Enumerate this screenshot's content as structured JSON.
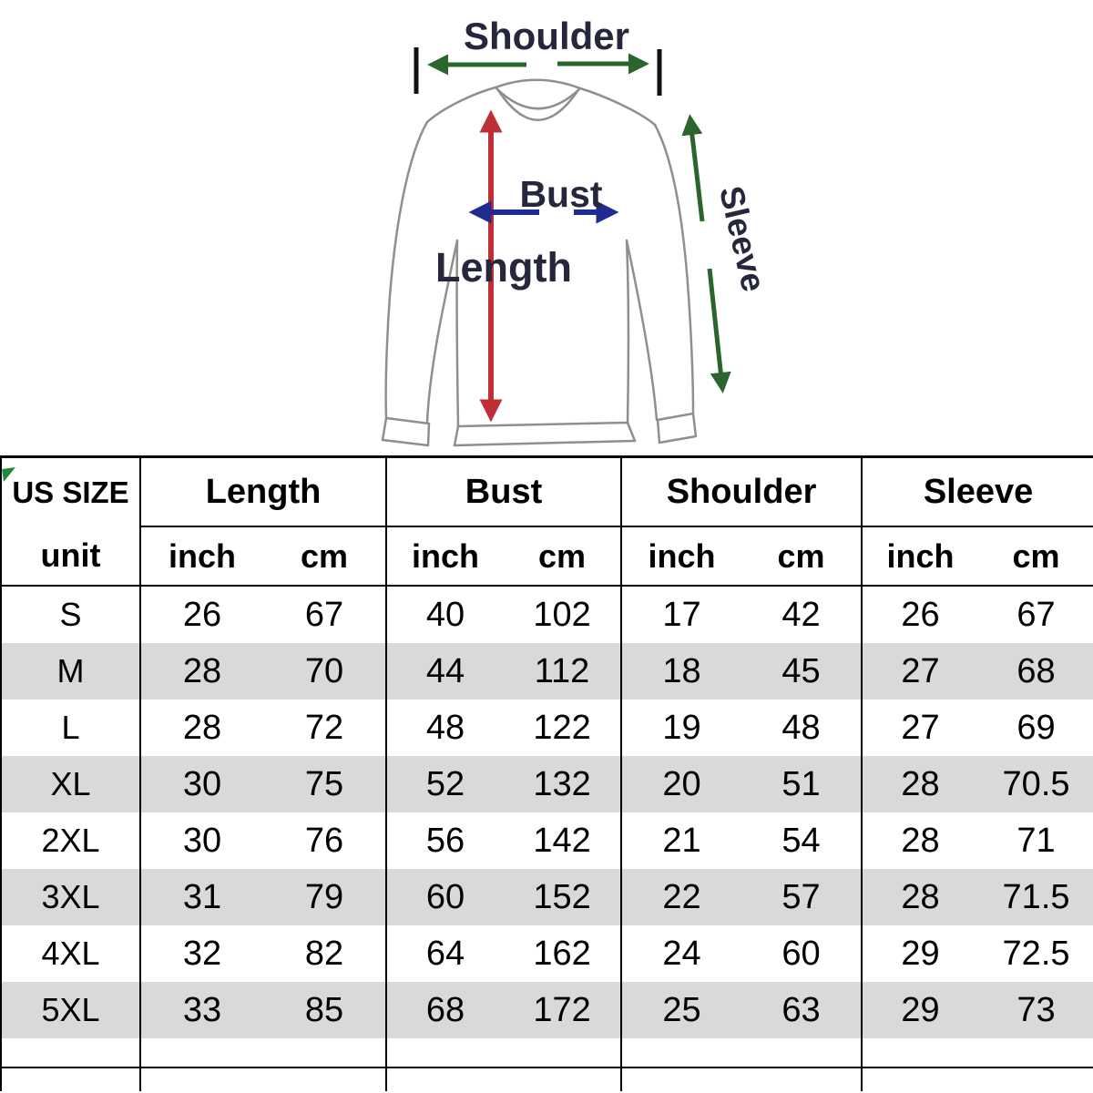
{
  "diagram": {
    "labels": {
      "shoulder": "Shoulder",
      "bust": "Bust",
      "length": "Length",
      "sleeve": "Sleeve"
    },
    "colors": {
      "label_text": "#26263c",
      "shoulder_sleeve_arrow": "#2c642e",
      "bust_arrow": "#1f2b90",
      "length_arrow": "#bf3036",
      "shirt_outline": "#8f8f8f",
      "end_bar": "#111111"
    }
  },
  "table": {
    "corner_label": "US SIZE",
    "unit_label": "unit",
    "group_headers": [
      "Length",
      "Bust",
      "Shoulder",
      "Sleeve"
    ],
    "unit_headers": [
      "inch",
      "cm"
    ],
    "row_stripe_color": "#d9d9d9",
    "rows": [
      {
        "size": "S",
        "cells": [
          "26",
          "67",
          "40",
          "102",
          "17",
          "42",
          "26",
          "67"
        ]
      },
      {
        "size": "M",
        "cells": [
          "28",
          "70",
          "44",
          "112",
          "18",
          "45",
          "27",
          "68"
        ]
      },
      {
        "size": "L",
        "cells": [
          "28",
          "72",
          "48",
          "122",
          "19",
          "48",
          "27",
          "69"
        ]
      },
      {
        "size": "XL",
        "cells": [
          "30",
          "75",
          "52",
          "132",
          "20",
          "51",
          "28",
          "70.5"
        ]
      },
      {
        "size": "2XL",
        "cells": [
          "30",
          "76",
          "56",
          "142",
          "21",
          "54",
          "28",
          "71"
        ]
      },
      {
        "size": "3XL",
        "cells": [
          "31",
          "79",
          "60",
          "152",
          "22",
          "57",
          "28",
          "71.5"
        ]
      },
      {
        "size": "4XL",
        "cells": [
          "32",
          "82",
          "64",
          "162",
          "24",
          "60",
          "29",
          "72.5"
        ]
      },
      {
        "size": "5XL",
        "cells": [
          "33",
          "85",
          "68",
          "172",
          "25",
          "63",
          "29",
          "73"
        ]
      }
    ]
  }
}
